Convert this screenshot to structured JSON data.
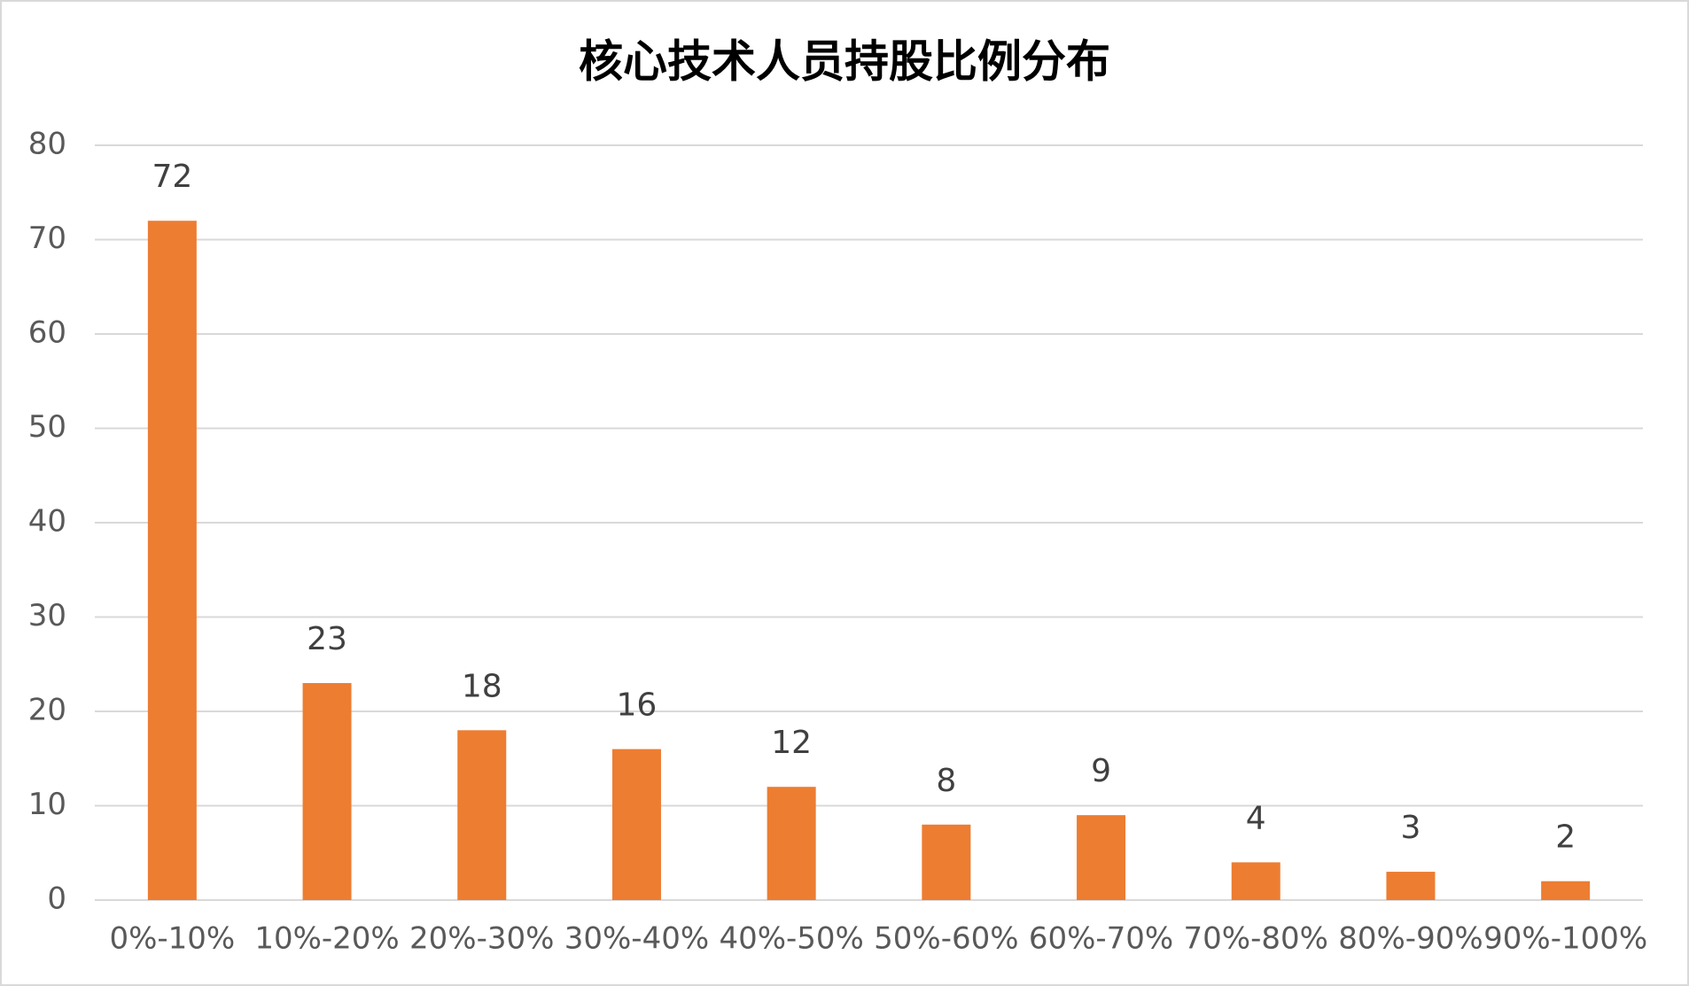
{
  "chart_data": {
    "type": "bar",
    "title": "核心技术人员持股比例分布",
    "categories": [
      "0%-10%",
      "10%-20%",
      "20%-30%",
      "30%-40%",
      "40%-50%",
      "50%-60%",
      "60%-70%",
      "70%-80%",
      "80%-90%",
      "90%-100%"
    ],
    "values": [
      72,
      23,
      18,
      16,
      12,
      8,
      9,
      4,
      3,
      2
    ],
    "color": "#ed7d31",
    "ylim": [
      0,
      80
    ],
    "yticks": [
      0,
      10,
      20,
      30,
      40,
      50,
      60,
      70,
      80
    ],
    "grid": true
  }
}
